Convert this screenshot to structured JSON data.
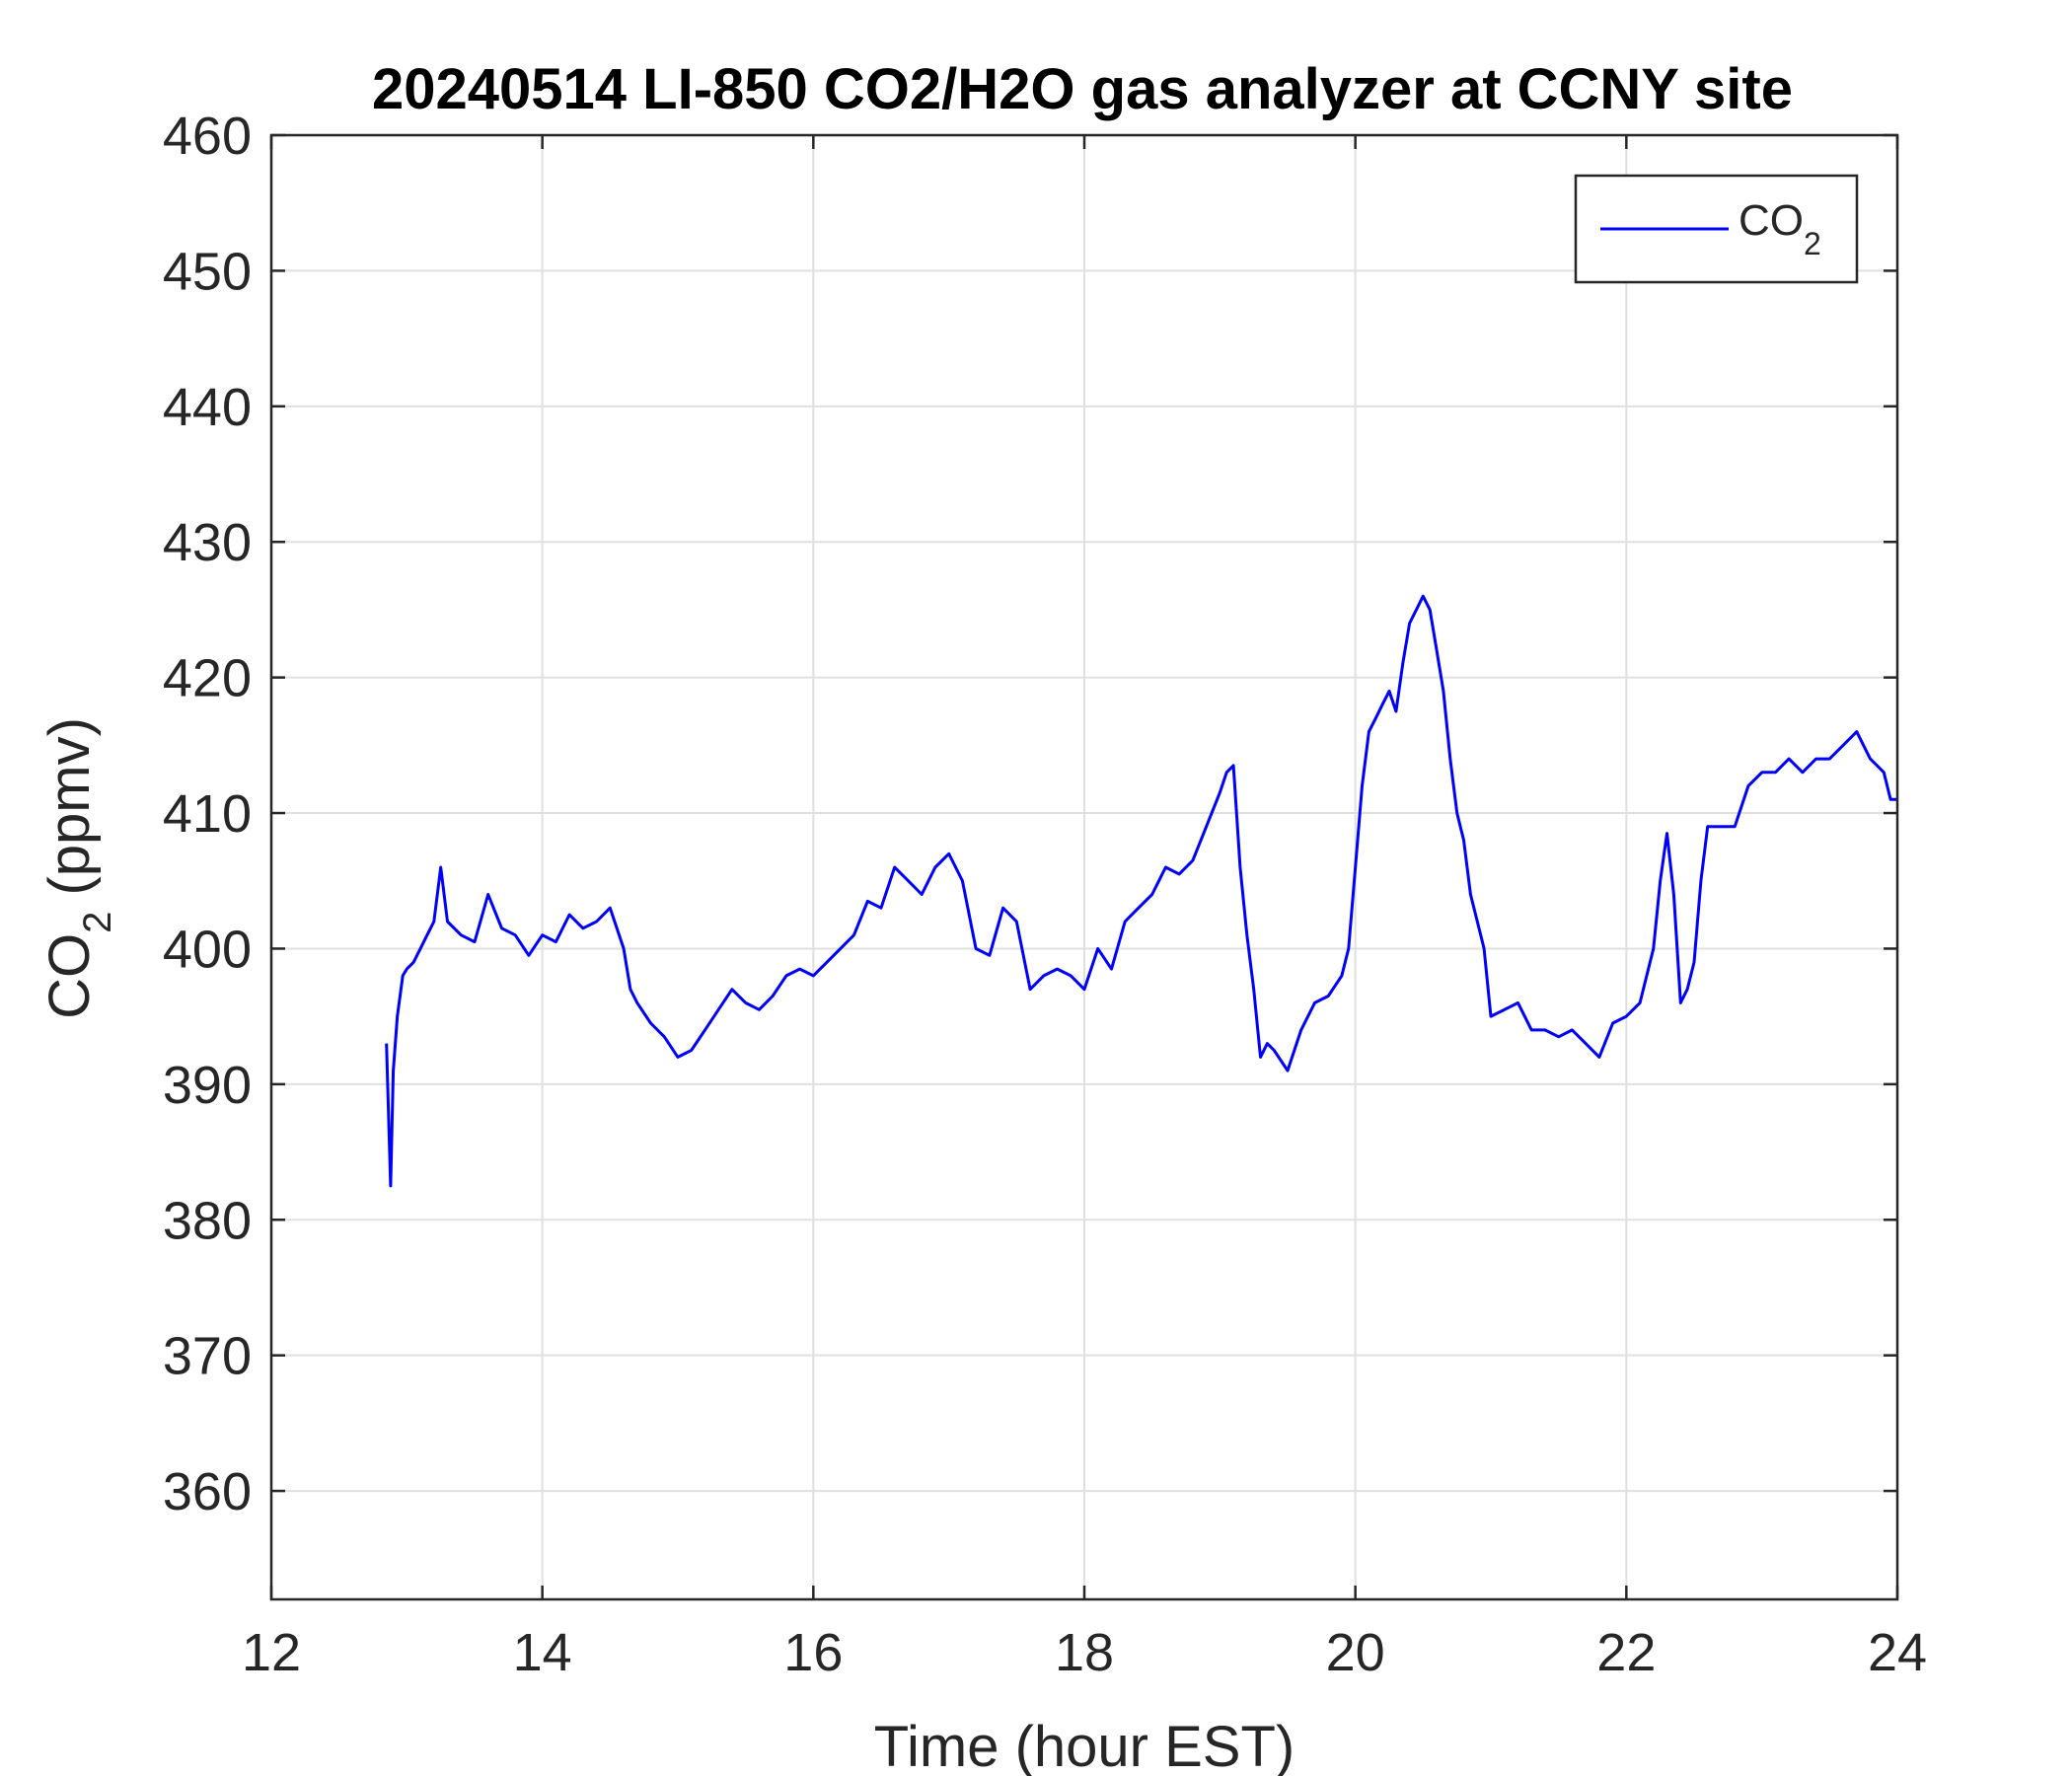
{
  "chart_data": {
    "type": "line",
    "title": "20240514 LI-850 CO2/H2O gas analyzer at CCNY site",
    "xlabel": "Time (hour EST)",
    "ylabel": {
      "main": "CO",
      "sub": "2",
      "unit": " (ppmv)"
    },
    "xlim": [
      12,
      24
    ],
    "ylim": [
      352,
      460
    ],
    "xticks": [
      12,
      14,
      16,
      18,
      20,
      22,
      24
    ],
    "yticks": [
      360,
      370,
      380,
      390,
      400,
      410,
      420,
      430,
      440,
      450,
      460
    ],
    "grid": true,
    "legend": {
      "position": "top-right",
      "label_main": "CO",
      "label_sub": "2"
    },
    "series": [
      {
        "name": "CO2",
        "color": "#0000ff",
        "x": [
          12.85,
          12.88,
          12.9,
          12.93,
          12.97,
          13.0,
          13.05,
          13.1,
          13.15,
          13.2,
          13.25,
          13.3,
          13.4,
          13.5,
          13.6,
          13.7,
          13.8,
          13.9,
          14.0,
          14.1,
          14.2,
          14.3,
          14.4,
          14.5,
          14.6,
          14.65,
          14.7,
          14.8,
          14.9,
          15.0,
          15.1,
          15.2,
          15.3,
          15.4,
          15.5,
          15.6,
          15.7,
          15.8,
          15.9,
          16.0,
          16.1,
          16.2,
          16.3,
          16.4,
          16.5,
          16.6,
          16.7,
          16.8,
          16.9,
          17.0,
          17.1,
          17.2,
          17.3,
          17.4,
          17.5,
          17.6,
          17.7,
          17.8,
          17.9,
          18.0,
          18.1,
          18.2,
          18.3,
          18.4,
          18.5,
          18.6,
          18.7,
          18.8,
          18.9,
          19.0,
          19.05,
          19.1,
          19.15,
          19.2,
          19.25,
          19.3,
          19.35,
          19.4,
          19.5,
          19.6,
          19.7,
          19.8,
          19.9,
          19.95,
          20.0,
          20.05,
          20.1,
          20.15,
          20.2,
          20.25,
          20.3,
          20.35,
          20.4,
          20.45,
          20.5,
          20.55,
          20.6,
          20.65,
          20.7,
          20.75,
          20.8,
          20.85,
          20.9,
          20.95,
          21.0,
          21.1,
          21.2,
          21.3,
          21.4,
          21.5,
          21.6,
          21.7,
          21.8,
          21.9,
          22.0,
          22.1,
          22.2,
          22.25,
          22.3,
          22.35,
          22.4,
          22.45,
          22.5,
          22.55,
          22.6,
          22.7,
          22.8,
          22.9,
          23.0,
          23.1,
          23.2,
          23.3,
          23.4,
          23.5,
          23.6,
          23.7,
          23.8,
          23.9,
          23.95,
          24.0
        ],
        "y": [
          393,
          382.5,
          391,
          395,
          398,
          398.5,
          399,
          400,
          401,
          402,
          406,
          402,
          401,
          400.5,
          404,
          401.5,
          401,
          399.5,
          401,
          400.5,
          402.5,
          401.5,
          402,
          403,
          400,
          397,
          396,
          394.5,
          393.5,
          392,
          392.5,
          394,
          395.5,
          397,
          396,
          395.5,
          396.5,
          398,
          398.5,
          398,
          399,
          400,
          401,
          403.5,
          403,
          406,
          405,
          404,
          406,
          407,
          405,
          400,
          399.5,
          403,
          402,
          397,
          398,
          398.5,
          398,
          397,
          400,
          398.5,
          402,
          403,
          404,
          406,
          405.5,
          406.5,
          409,
          411.5,
          413,
          413.5,
          406,
          401,
          397,
          392,
          393,
          392.5,
          391,
          394,
          396,
          396.5,
          398,
          400,
          406,
          412,
          416,
          417,
          418,
          419,
          417.5,
          421,
          424,
          425,
          426,
          425,
          422,
          419,
          414,
          410,
          408,
          404,
          402,
          400,
          395,
          395.5,
          396,
          394,
          394,
          393.5,
          394,
          393,
          392,
          394.5,
          395,
          396,
          400,
          405,
          408.5,
          404,
          396,
          397,
          399,
          405,
          409,
          409,
          409,
          412,
          413,
          413,
          414,
          413,
          414,
          414,
          415,
          416,
          414,
          413,
          411,
          411
        ]
      }
    ]
  }
}
